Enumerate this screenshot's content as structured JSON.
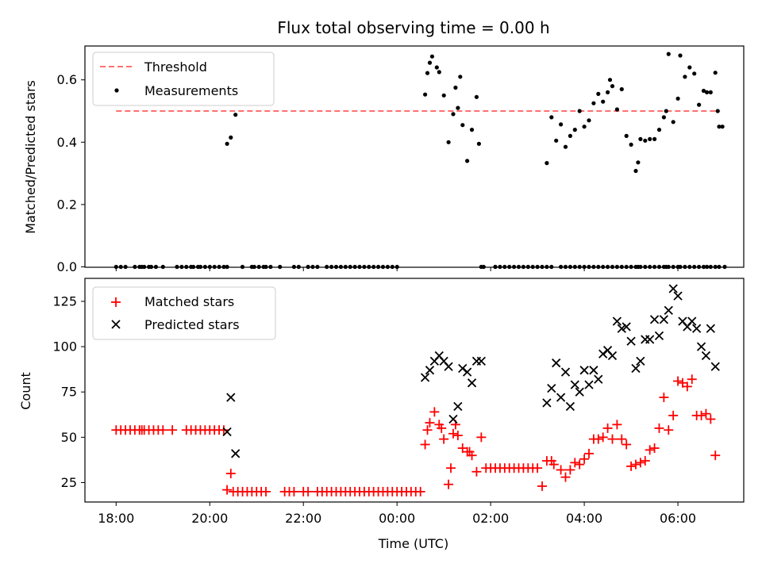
{
  "title": "Flux total observing time = 0.00 h",
  "top": {
    "ylabel": "Matched/Predicted stars",
    "yticks": [
      "0.0",
      "0.2",
      "0.4",
      "0.6"
    ],
    "legend": {
      "threshold_label": "Threshold",
      "measurements_label": "Measurements"
    }
  },
  "bottom": {
    "ylabel": "Count",
    "yticks": [
      "25",
      "50",
      "75",
      "100",
      "125"
    ],
    "legend": {
      "matched_label": "Matched stars",
      "predicted_label": "Predicted stars"
    }
  },
  "xlabel": "Time (UTC)",
  "xticks": [
    "18:00",
    "20:00",
    "22:00",
    "00:00",
    "02:00",
    "04:00",
    "06:00"
  ],
  "colors": {
    "threshold": "#ff7070",
    "measurements": "#000000",
    "matched": "#ff0000",
    "predicted": "#000000"
  },
  "chart_data": [
    {
      "type": "scatter",
      "title": "Flux total observing time = 0.00 h",
      "xlabel": "",
      "ylabel": "Matched/Predicted stars",
      "x_unit": "hours after 18:00 UTC",
      "xlim": [
        -0.65,
        13.3
      ],
      "ylim": [
        0,
        0.715
      ],
      "threshold": {
        "label": "Threshold",
        "value": 0.5,
        "x_range": [
          0,
          12.9
        ],
        "style": "dashed"
      },
      "series": [
        {
          "name": "Measurements",
          "x": [
            0.0,
            0.1,
            0.2,
            0.4,
            0.5,
            0.55,
            0.6,
            0.7,
            0.75,
            0.85,
            1.0,
            1.3,
            1.4,
            1.5,
            1.6,
            1.65,
            1.75,
            1.8,
            1.9,
            2.0,
            2.1,
            2.2,
            2.3,
            2.37,
            2.37,
            2.45,
            2.55,
            2.7,
            2.9,
            2.95,
            3.05,
            3.15,
            3.2,
            3.3,
            3.5,
            3.8,
            3.9,
            4.1,
            4.2,
            4.3,
            4.5,
            4.6,
            4.7,
            4.8,
            4.9,
            5.0,
            5.1,
            5.2,
            5.3,
            5.4,
            5.5,
            5.6,
            5.7,
            5.8,
            5.9,
            6.0,
            6.6,
            6.65,
            6.7,
            6.75,
            6.85,
            6.9,
            7.0,
            7.1,
            7.2,
            7.25,
            7.3,
            7.35,
            7.4,
            7.5,
            7.6,
            7.7,
            7.75,
            7.8,
            7.85,
            8.1,
            8.1,
            8.2,
            8.3,
            8.4,
            8.5,
            8.6,
            8.7,
            8.8,
            8.9,
            9.0,
            9.1,
            9.2,
            9.3,
            9.5,
            9.6,
            9.7,
            9.8,
            9.9,
            10.0,
            10.1,
            10.2,
            10.3,
            10.4,
            10.5,
            10.6,
            10.7,
            10.8,
            10.9,
            11.0,
            11.1,
            11.15,
            11.2,
            11.3,
            11.4,
            11.5,
            11.6,
            11.7,
            11.75,
            11.8,
            11.9,
            12.0,
            12.05,
            12.15,
            12.25,
            12.35,
            12.45,
            12.55,
            12.62,
            12.7,
            12.8,
            12.88
          ],
          "y": [
            0.0,
            0.0,
            0.0,
            0.0,
            0.0,
            0.0,
            0.0,
            0.0,
            0.0,
            0.0,
            0.0,
            0.0,
            0.0,
            0.0,
            0.0,
            0.0,
            0.0,
            0.0,
            0.0,
            0.0,
            0.0,
            0.0,
            0.0,
            0.0,
            0.395,
            0.415,
            0.488,
            0.0,
            0.0,
            0.0,
            0.0,
            0.0,
            0.0,
            0.0,
            0.0,
            0.0,
            0.0,
            0.0,
            0.0,
            0.0,
            0.0,
            0.0,
            0.0,
            0.0,
            0.0,
            0.0,
            0.0,
            0.0,
            0.0,
            0.0,
            0.0,
            0.0,
            0.0,
            0.0,
            0.0,
            0.0,
            0.553,
            0.622,
            0.655,
            0.675,
            0.64,
            0.625,
            0.55,
            0.4,
            0.49,
            0.575,
            0.51,
            0.61,
            0.455,
            0.34,
            0.44,
            0.545,
            0.395,
            0.0,
            0.0,
            0.0,
            0.0,
            0.0,
            0.0,
            0.0,
            0.0,
            0.0,
            0.0,
            0.0,
            0.0,
            0.0,
            0.0,
            0.0,
            0.0,
            0.0,
            0.0,
            0.0,
            0.0,
            0.0,
            0.0,
            0.0,
            0.0,
            0.0,
            0.0,
            0.0,
            0.0,
            0.0,
            0.0,
            0.0,
            0.0,
            0.0,
            0.0,
            0.0,
            0.0,
            0.0,
            0.0,
            0.0,
            0.0,
            0.0,
            0.0,
            0.0,
            0.0,
            0.0,
            0.0,
            0.0,
            0.0,
            0.0,
            0.0,
            0.0,
            0.0,
            0.0,
            0.0
          ]
        },
        {
          "name": "Measurements",
          "x": [
            9.2,
            9.3,
            9.4,
            9.5,
            9.6,
            9.7,
            9.8,
            9.9,
            10.0,
            10.1,
            10.2,
            10.3,
            10.4,
            10.5,
            10.55,
            10.6,
            10.7,
            10.8,
            10.9,
            11.0,
            11.1,
            11.15,
            11.2,
            11.3,
            11.4,
            11.5,
            11.6,
            11.7,
            11.75,
            11.8,
            11.9,
            12.0,
            12.05,
            12.15,
            12.25,
            12.35,
            12.45,
            12.55,
            12.62,
            12.7,
            12.8,
            12.85,
            12.88,
            12.95,
            13.0
          ],
          "y": [
            0.333,
            0.48,
            0.405,
            0.457,
            0.385,
            0.42,
            0.44,
            0.5,
            0.45,
            0.47,
            0.525,
            0.555,
            0.53,
            0.56,
            0.6,
            0.58,
            0.505,
            0.57,
            0.42,
            0.392,
            0.308,
            0.335,
            0.41,
            0.405,
            0.41,
            0.41,
            0.44,
            0.48,
            0.5,
            0.683,
            0.465,
            0.54,
            0.678,
            0.61,
            0.64,
            0.62,
            0.52,
            0.565,
            0.56,
            0.56,
            0.623,
            0.5,
            0.45,
            0.45,
            0.0
          ]
        }
      ]
    },
    {
      "type": "scatter",
      "xlabel": "Time (UTC)",
      "ylabel": "Count",
      "x_unit": "hours after 18:00 UTC",
      "xlim": [
        -0.65,
        13.3
      ],
      "ylim": [
        13,
        139
      ],
      "x_tick_labels": [
        "18:00",
        "20:00",
        "22:00",
        "00:00",
        "02:00",
        "04:00",
        "06:00"
      ],
      "series": [
        {
          "name": "Matched stars",
          "marker": "+",
          "x": [
            0.0,
            0.1,
            0.2,
            0.3,
            0.4,
            0.5,
            0.55,
            0.6,
            0.7,
            0.8,
            0.9,
            1.0,
            1.2,
            1.5,
            1.6,
            1.7,
            1.8,
            1.9,
            2.0,
            2.1,
            2.2,
            2.3,
            2.37,
            2.45,
            2.5,
            2.6,
            2.7,
            2.8,
            2.9,
            3.0,
            3.1,
            3.2,
            3.6,
            3.7,
            3.8,
            4.0,
            4.1,
            4.3,
            4.4,
            4.5,
            4.6,
            4.7,
            4.8,
            4.9,
            5.0,
            5.1,
            5.2,
            5.3,
            5.4,
            5.5,
            5.6,
            5.7,
            5.8,
            5.9,
            6.0,
            6.1,
            6.2,
            6.3,
            6.4,
            6.5,
            6.6,
            6.65,
            6.7,
            6.8,
            6.9,
            6.95,
            7.0,
            7.1,
            7.15,
            7.2,
            7.25,
            7.3,
            7.4,
            7.5,
            7.55,
            7.6,
            7.7,
            7.8,
            7.9,
            8.0,
            8.1,
            8.2,
            8.3,
            8.4,
            8.5,
            8.6,
            8.7,
            8.8,
            8.9,
            9.0,
            9.1,
            9.2,
            9.3,
            9.35,
            9.5,
            9.6,
            9.7,
            9.8,
            9.9,
            10.0,
            10.1,
            10.2,
            10.3,
            10.4,
            10.5,
            10.6,
            10.7,
            10.8,
            10.9,
            11.0,
            11.1,
            11.2,
            11.3,
            11.4,
            11.5,
            11.6,
            11.7,
            11.8,
            11.9,
            12.0,
            12.1,
            12.2,
            12.3,
            12.4,
            12.5,
            12.6,
            12.7,
            12.8
          ],
          "y": [
            54,
            54,
            54,
            54,
            54,
            54,
            54,
            54,
            54,
            54,
            54,
            54,
            54,
            54,
            54,
            54,
            54,
            54,
            54,
            54,
            54,
            54,
            21,
            30,
            20,
            20,
            20,
            20,
            20,
            20,
            20,
            20,
            20,
            20,
            20,
            20,
            20,
            20,
            20,
            20,
            20,
            20,
            20,
            20,
            20,
            20,
            20,
            20,
            20,
            20,
            20,
            20,
            20,
            20,
            20,
            20,
            20,
            20,
            20,
            20,
            46,
            54,
            58,
            64,
            57,
            55,
            49,
            24,
            33,
            52,
            57,
            51,
            44,
            42,
            42,
            40,
            31,
            50,
            33,
            33,
            33,
            33,
            33,
            33,
            33,
            33,
            33,
            33,
            33,
            33,
            23,
            37,
            37,
            35,
            32,
            28,
            32,
            36,
            35,
            38,
            41,
            49,
            49,
            50,
            55,
            49,
            57,
            49,
            46,
            34,
            35,
            36,
            37,
            43,
            44,
            55,
            72,
            54,
            62,
            81,
            80,
            78,
            82,
            62,
            62,
            63,
            60,
            40
          ]
        },
        {
          "name": "Predicted stars",
          "marker": "x",
          "x": [
            2.37,
            2.45,
            2.55,
            6.6,
            6.7,
            6.8,
            6.9,
            7.0,
            7.1,
            7.2,
            7.3,
            7.4,
            7.5,
            7.6,
            7.7,
            7.8,
            9.2,
            9.3,
            9.4,
            9.5,
            9.6,
            9.7,
            9.8,
            9.9,
            10.0,
            10.1,
            10.2,
            10.3,
            10.4,
            10.5,
            10.6,
            10.7,
            10.8,
            10.9,
            11.0,
            11.1,
            11.2,
            11.3,
            11.4,
            11.5,
            11.6,
            11.7,
            11.8,
            11.9,
            12.0,
            12.1,
            12.2,
            12.3,
            12.4,
            12.5,
            12.6,
            12.7,
            12.8
          ],
          "y": [
            53,
            72,
            41,
            83,
            87,
            92,
            95,
            92,
            89,
            60,
            67,
            88,
            86,
            80,
            92,
            92,
            69,
            77,
            91,
            72,
            86,
            67,
            79,
            75,
            87,
            79,
            87,
            82,
            96,
            98,
            95,
            114,
            110,
            111,
            103,
            88,
            92,
            104,
            104,
            115,
            106,
            115,
            120,
            132,
            128,
            114,
            111,
            114,
            110,
            100,
            95,
            110,
            89
          ]
        }
      ]
    }
  ]
}
